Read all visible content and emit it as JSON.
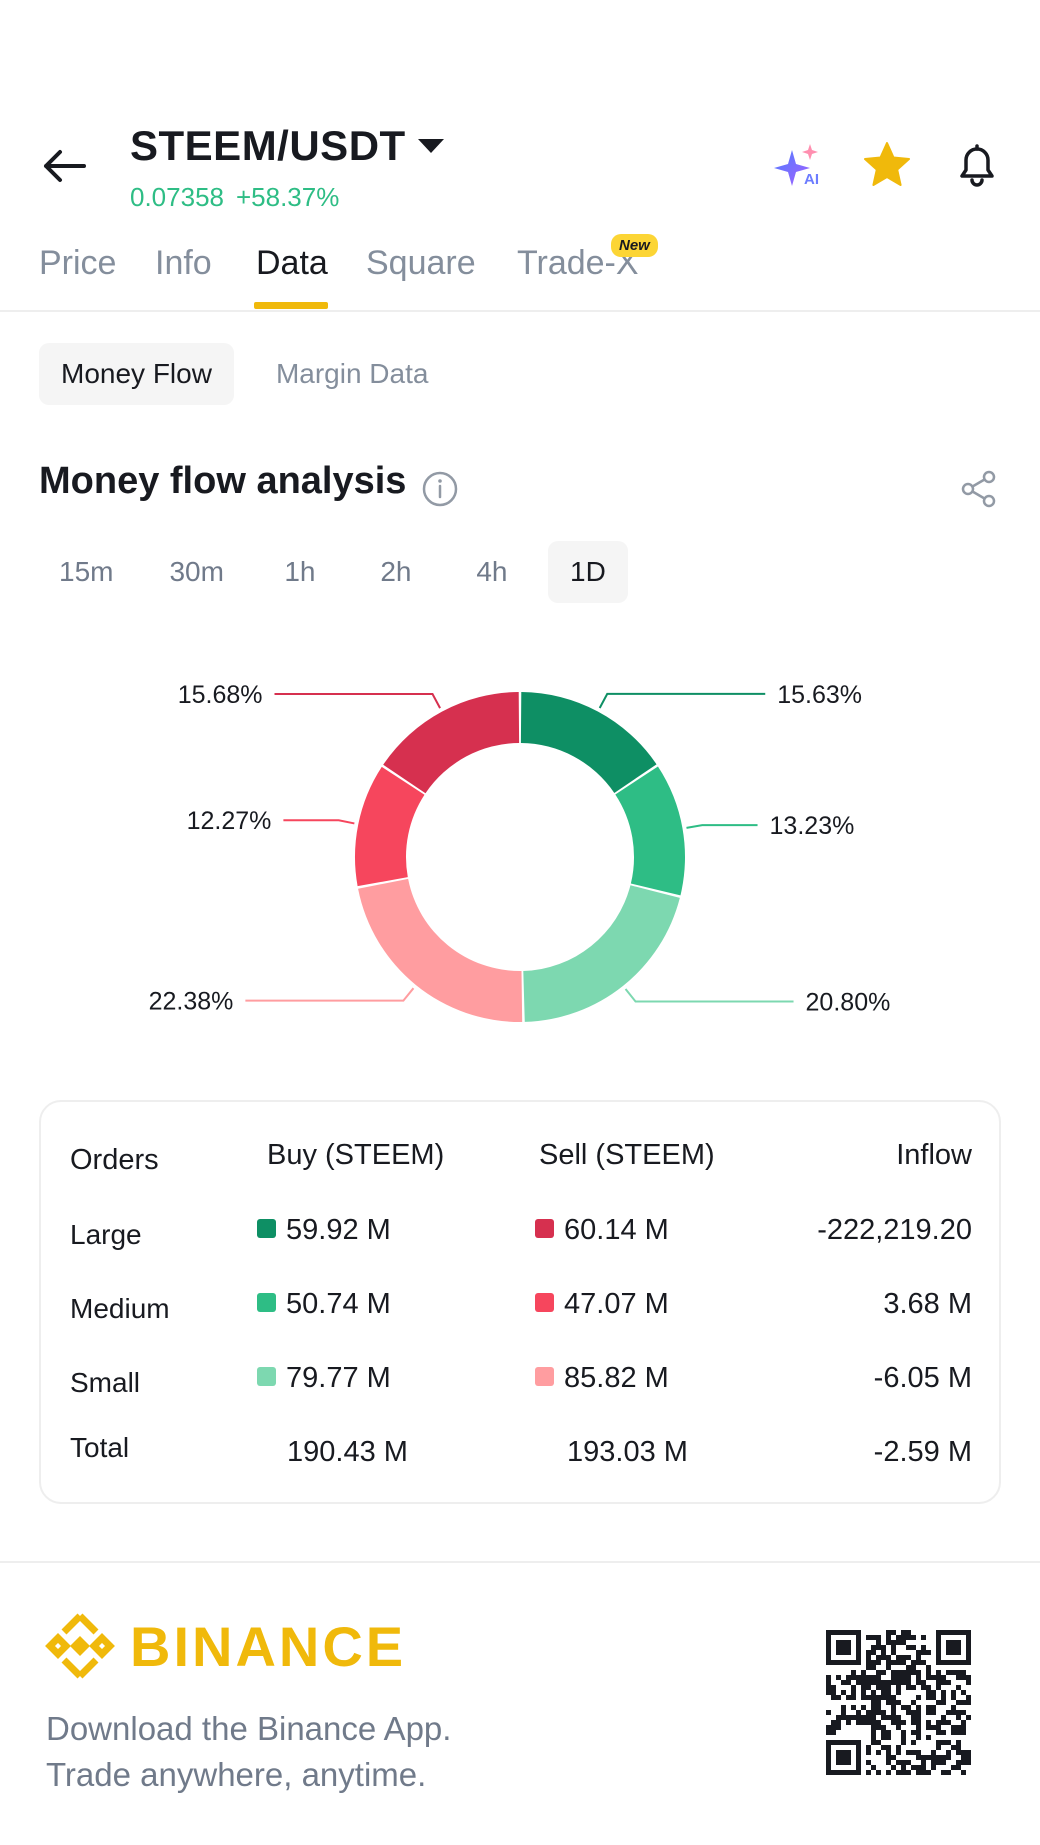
{
  "header": {
    "pair": "STEEM/USDT",
    "price": "0.07358",
    "change": "+58.37%",
    "icons": [
      "arrow-left-icon",
      "ai-sparkle-icon",
      "star-icon",
      "bell-icon"
    ],
    "colors": {
      "up": "#2ebd85",
      "star": "#f0b90b"
    }
  },
  "tabs": [
    {
      "label": "Price",
      "active": false
    },
    {
      "label": "Info",
      "active": false
    },
    {
      "label": "Data",
      "active": true
    },
    {
      "label": "Square",
      "active": false
    },
    {
      "label": "Trade-X",
      "active": false,
      "badge": "New"
    }
  ],
  "subtabs": [
    {
      "label": "Money Flow",
      "active": true
    },
    {
      "label": "Margin Data",
      "active": false
    }
  ],
  "section": {
    "title": "Money flow analysis",
    "icons": [
      "info-icon",
      "share-icon"
    ]
  },
  "intervals": [
    {
      "label": "15m",
      "active": false
    },
    {
      "label": "30m",
      "active": false
    },
    {
      "label": "1h",
      "active": false
    },
    {
      "label": "2h",
      "active": false
    },
    {
      "label": "4h",
      "active": false
    },
    {
      "label": "1D",
      "active": true
    }
  ],
  "chart_data": {
    "type": "pie",
    "subtype": "donut",
    "categories": [
      "Large Buy",
      "Medium Buy",
      "Small Buy",
      "Small Sell",
      "Medium Sell",
      "Large Sell"
    ],
    "values": [
      15.63,
      13.23,
      20.8,
      22.38,
      12.27,
      15.68
    ],
    "labels": [
      "15.63%",
      "13.23%",
      "20.80%",
      "22.38%",
      "12.27%",
      "15.68%"
    ],
    "colors": [
      "#0e8f64",
      "#2ebd85",
      "#7dd8b0",
      "#ff9da0",
      "#f6465d",
      "#d6304f"
    ],
    "legend": "none"
  },
  "table": {
    "headers": [
      "Orders",
      "Buy (STEEM)",
      "Sell (STEEM)",
      "Inflow"
    ],
    "rows": [
      {
        "label": "Large",
        "buy": "59.92 M",
        "sell": "60.14 M",
        "inflow": "-222,219.20",
        "buy_color": "#0e8f64",
        "sell_color": "#d6304f"
      },
      {
        "label": "Medium",
        "buy": "50.74 M",
        "sell": "47.07 M",
        "inflow": "3.68 M",
        "buy_color": "#2ebd85",
        "sell_color": "#f6465d"
      },
      {
        "label": "Small",
        "buy": "79.77 M",
        "sell": "85.82 M",
        "inflow": "-6.05 M",
        "buy_color": "#7dd8b0",
        "sell_color": "#ff9da0"
      }
    ],
    "total": {
      "label": "Total",
      "buy": "190.43 M",
      "sell": "193.03 M",
      "inflow": "-2.59 M"
    }
  },
  "footer": {
    "brand": "BINANCE",
    "line1": "Download the Binance App.",
    "line2": "Trade anywhere, anytime.",
    "icons": [
      "binance-logo-icon",
      "qr-code-icon"
    ]
  }
}
